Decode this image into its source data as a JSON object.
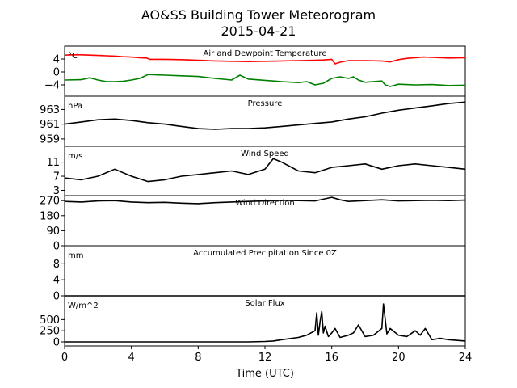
{
  "title_line1": "AO&SS Building Tower Meteorogram",
  "title_line2": "2015-04-21",
  "chart_data": {
    "type": "line",
    "title": "AO&SS Building Tower Meteorogram 2015-04-21",
    "xlabel": "Time (UTC)",
    "xlim": [
      0,
      24
    ],
    "x_ticks": [
      0,
      4,
      8,
      12,
      16,
      20,
      24
    ],
    "x_tick_labels": [
      "0",
      "4",
      "8",
      "12",
      "16",
      "20",
      "24"
    ],
    "grid": false,
    "panels": [
      {
        "id": "temp",
        "title": "Air and Dewpoint Temperature",
        "unit_label": "°C",
        "ylim": [
          -7.5,
          8
        ],
        "yticks": [
          4,
          0,
          -4
        ],
        "ytick_labels": [
          "4",
          "0",
          "−4"
        ],
        "series": [
          {
            "color": "#ff0000",
            "x": [
              0,
              0.5,
              1,
              1.5,
              2,
              2.5,
              3,
              3.5,
              4,
              4.5,
              4.9,
              5.1,
              5.5,
              6,
              7,
              8,
              9,
              10,
              11,
              12,
              13,
              14,
              15,
              15.5,
              16,
              16.2,
              16.5,
              17,
              18,
              19,
              19.5,
              20,
              20.5,
              21,
              21.5,
              22,
              23,
              24
            ],
            "values": [
              5.2,
              5.3,
              5.3,
              5.2,
              5.1,
              5.0,
              4.9,
              4.7,
              4.6,
              4.4,
              4.3,
              3.9,
              3.9,
              3.9,
              3.8,
              3.6,
              3.4,
              3.3,
              3.2,
              3.3,
              3.4,
              3.5,
              3.6,
              3.7,
              3.9,
              2.5,
              3.0,
              3.5,
              3.5,
              3.4,
              3.1,
              3.8,
              4.2,
              4.4,
              4.6,
              4.5,
              4.3,
              4.4
            ]
          },
          {
            "color": "#008000",
            "x": [
              0,
              1,
              1.5,
              2,
              2.5,
              3,
              3.5,
              4,
              4.5,
              5,
              5.5,
              6,
              7,
              8,
              9,
              10,
              10.5,
              11,
              12,
              12.5,
              13,
              14,
              14.5,
              15,
              15.5,
              16,
              16.5,
              17,
              17.3,
              17.6,
              18,
              19,
              19.2,
              19.5,
              20,
              21,
              22,
              23,
              24
            ],
            "values": [
              -2.5,
              -2.4,
              -1.8,
              -2.5,
              -3.0,
              -3.0,
              -2.9,
              -2.5,
              -2.0,
              -0.8,
              -0.9,
              -1.0,
              -1.2,
              -1.4,
              -2.0,
              -2.5,
              -1.0,
              -2.2,
              -2.6,
              -2.8,
              -3.0,
              -3.3,
              -3.0,
              -4.0,
              -3.5,
              -2.0,
              -1.5,
              -2.0,
              -1.5,
              -2.5,
              -3.2,
              -2.8,
              -4.0,
              -4.5,
              -3.8,
              -4.0,
              -3.9,
              -4.2,
              -4.1
            ]
          }
        ]
      },
      {
        "id": "pressure",
        "title": "Pressure",
        "unit_label": "hPa",
        "ylim": [
          958,
          964.8
        ],
        "yticks": [
          963,
          961,
          959
        ],
        "ytick_labels": [
          "963",
          "961",
          "959"
        ],
        "series": [
          {
            "color": "#000000",
            "x": [
              0,
              1,
              2,
              3,
              4,
              5,
              6,
              7,
              8,
              9,
              10,
              11,
              12,
              13,
              14,
              15,
              16,
              17,
              18,
              19,
              20,
              21,
              22,
              23,
              24
            ],
            "values": [
              961.0,
              961.3,
              961.6,
              961.7,
              961.5,
              961.2,
              961.0,
              960.7,
              960.4,
              960.3,
              960.4,
              960.4,
              960.5,
              960.7,
              960.9,
              961.1,
              961.3,
              961.7,
              962.0,
              962.5,
              962.9,
              963.2,
              963.5,
              963.8,
              964.0
            ]
          }
        ]
      },
      {
        "id": "wind_speed",
        "title": "Wind Speed",
        "unit_label": "m/s",
        "ylim": [
          1.5,
          15.5
        ],
        "yticks": [
          11,
          7,
          3
        ],
        "ytick_labels": [
          "11",
          "7",
          "3"
        ],
        "series": [
          {
            "color": "#000000",
            "x": [
              0,
              1,
              2,
              3,
              4,
              5,
              6,
              7,
              8,
              9,
              10,
              11,
              12,
              12.5,
              13,
              14,
              15,
              16,
              17,
              18,
              19,
              20,
              21,
              22,
              23,
              24
            ],
            "values": [
              6.5,
              6.0,
              7.0,
              9.0,
              7.0,
              5.5,
              6.0,
              7.0,
              7.5,
              8.0,
              8.5,
              7.5,
              9.0,
              12.0,
              11.0,
              8.5,
              8.0,
              9.5,
              10.0,
              10.5,
              9.0,
              10.0,
              10.5,
              10.0,
              9.5,
              9.0
            ]
          }
        ]
      },
      {
        "id": "wind_dir",
        "title": "Wind Direction",
        "unit_label": "",
        "ylim": [
          0,
          300
        ],
        "yticks": [
          270,
          180,
          90,
          0
        ],
        "ytick_labels": [
          "270",
          "180",
          "90",
          "0"
        ],
        "series": [
          {
            "color": "#000000",
            "x": [
              0,
              1,
              2,
              3,
              4,
              5,
              6,
              7,
              8,
              9,
              10,
              11,
              12,
              13,
              14,
              15,
              16,
              16.5,
              17,
              18,
              19,
              20,
              21,
              22,
              23,
              24
            ],
            "values": [
              265,
              262,
              268,
              270,
              262,
              258,
              260,
              255,
              252,
              258,
              262,
              265,
              268,
              272,
              270,
              268,
              290,
              275,
              265,
              270,
              275,
              268,
              270,
              272,
              270,
              273
            ]
          }
        ]
      },
      {
        "id": "precip",
        "title": "Accumulated Precipitation Since 0Z",
        "unit_label": "mm",
        "ylim": [
          0,
          12.5
        ],
        "yticks": [
          8,
          4,
          0
        ],
        "ytick_labels": [
          "8",
          "4",
          "0"
        ],
        "series": [
          {
            "color": "#000000",
            "x": [
              0,
              24
            ],
            "values": [
              0,
              0
            ]
          }
        ]
      },
      {
        "id": "solar",
        "title": "Solar Flux",
        "unit_label": "W/m^2",
        "ylim": [
          -90,
          1030
        ],
        "yticks": [
          500,
          250,
          0
        ],
        "ytick_labels": [
          "500",
          "250",
          "0"
        ],
        "series": [
          {
            "color": "#000000",
            "x": [
              0,
              6,
              10,
              11,
              12,
              12.5,
              13,
              14,
              14.5,
              15,
              15.1,
              15.2,
              15.3,
              15.4,
              15.5,
              15.6,
              15.8,
              16,
              16.2,
              16.5,
              17,
              17.3,
              17.6,
              18,
              18.5,
              19,
              19.1,
              19.3,
              19.5,
              20,
              20.5,
              21,
              21.3,
              21.6,
              22,
              22.5,
              23,
              24
            ],
            "values": [
              0,
              0,
              0,
              0,
              10,
              20,
              50,
              100,
              150,
              250,
              650,
              150,
              450,
              680,
              200,
              350,
              120,
              200,
              300,
              100,
              150,
              200,
              380,
              120,
              150,
              300,
              850,
              180,
              300,
              150,
              120,
              250,
              150,
              300,
              50,
              80,
              50,
              20
            ]
          }
        ]
      }
    ]
  }
}
